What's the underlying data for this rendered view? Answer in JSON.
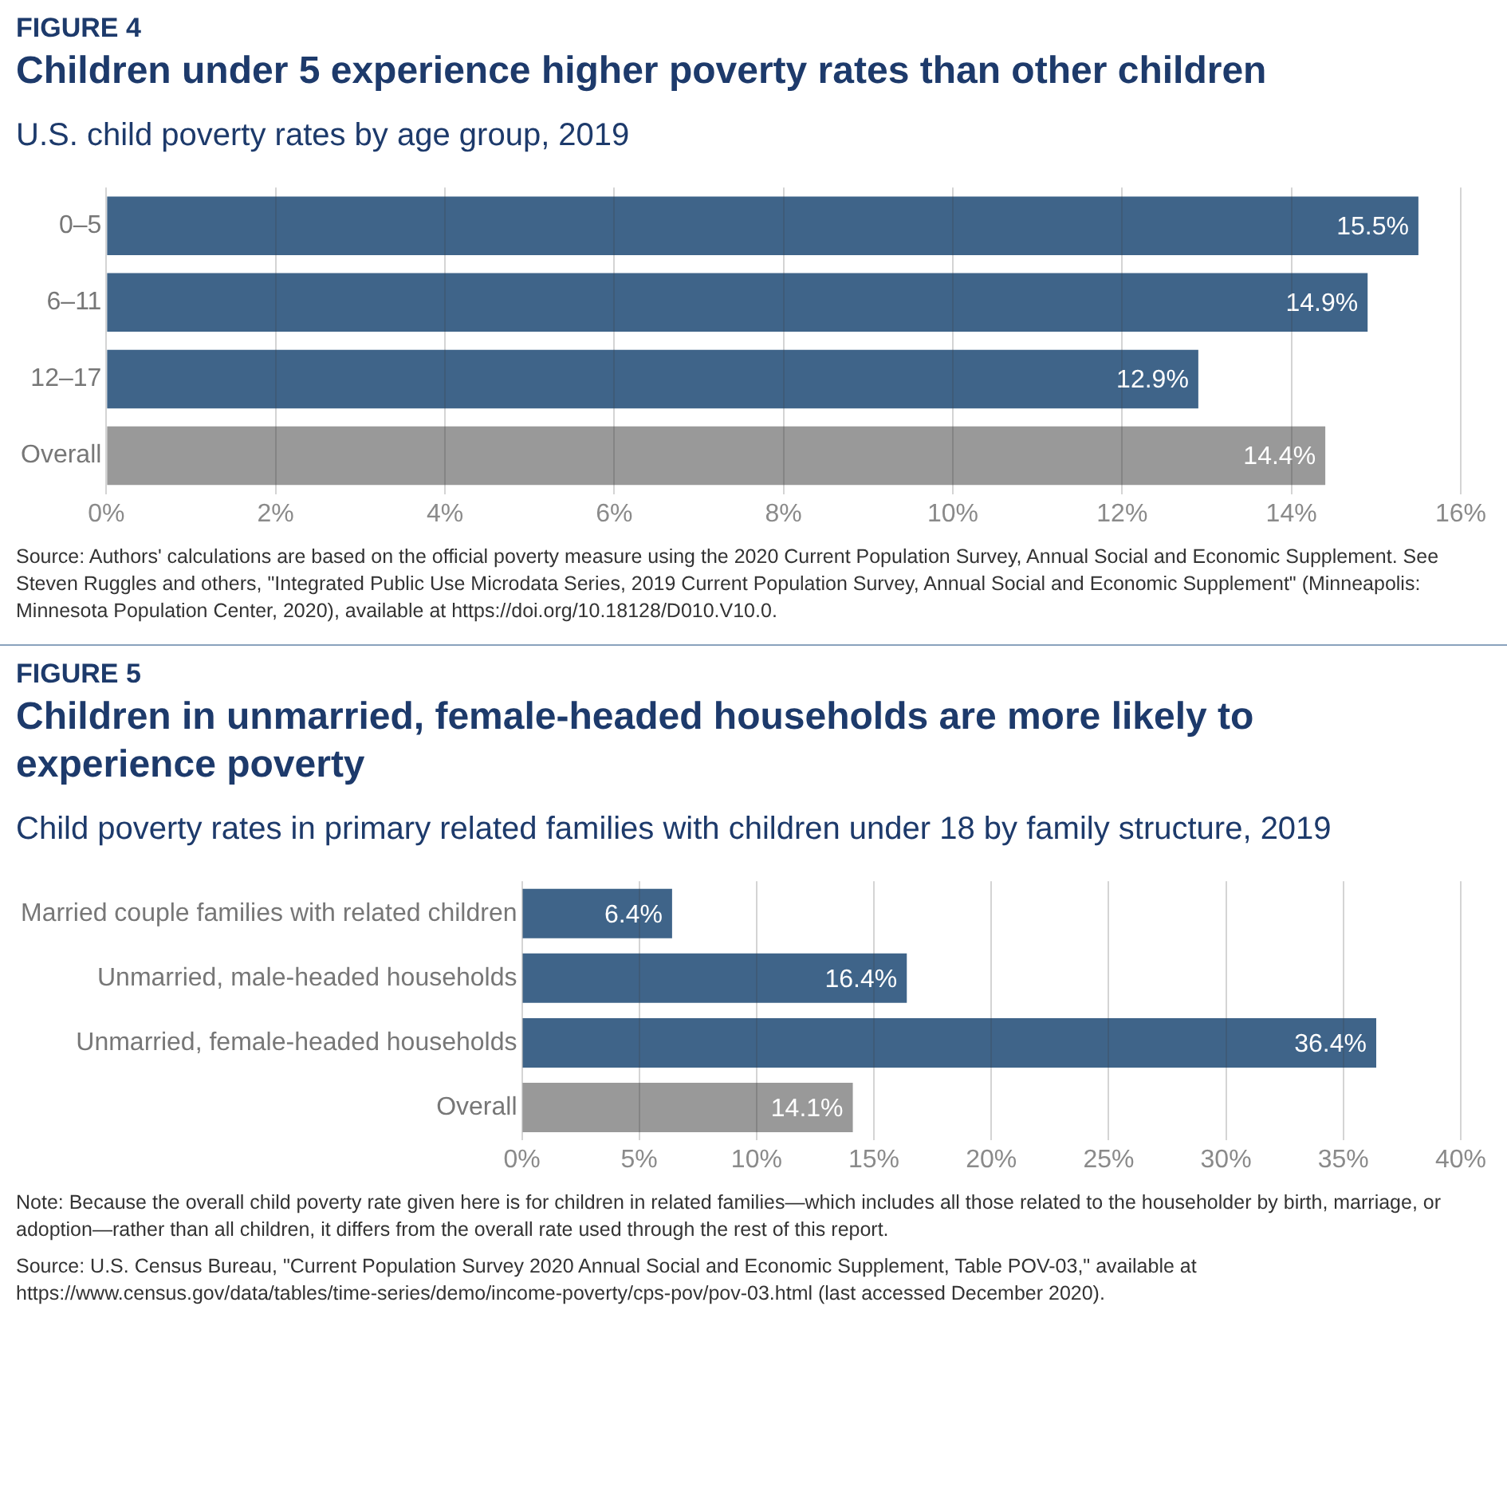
{
  "chart_data": [
    {
      "type": "bar",
      "orientation": "horizontal",
      "title": "Children under 5 experience higher poverty rates than other children",
      "subtitle": "U.S. child poverty rates by age group, 2019",
      "categories": [
        "0–5",
        "6–11",
        "12–17",
        "Overall"
      ],
      "values": [
        15.5,
        14.9,
        12.9,
        14.4
      ],
      "colors": [
        "#3f6489",
        "#3f6489",
        "#3f6489",
        "#999999"
      ],
      "value_labels": [
        "15.5%",
        "14.9%",
        "12.9%",
        "14.4%"
      ],
      "xlim": [
        0,
        16
      ],
      "xticks": [
        {
          "value": 0,
          "label": "0%"
        },
        {
          "value": 2,
          "label": "2%"
        },
        {
          "value": 4,
          "label": "4%"
        },
        {
          "value": 6,
          "label": "6%"
        },
        {
          "value": 8,
          "label": "8%"
        },
        {
          "value": 10,
          "label": "10%"
        },
        {
          "value": 12,
          "label": "12%"
        },
        {
          "value": 14,
          "label": "14%"
        },
        {
          "value": 16,
          "label": "16%"
        }
      ],
      "grid": "x",
      "legend": false,
      "annotations": [
        "FIGURE 4",
        "Source: Authors' calculations are based on the official poverty measure using the 2020 Current Population Survey, Annual Social and Economic Supplement. See Steven Ruggles and others, \"Integrated Public Use Microdata Series, 2019 Current Population Survey, Annual Social and Economic Supplement\" (Minneapolis: Minnesota Population Center, 2020), available at https://doi.org/10.18128/D010.V10.0."
      ]
    },
    {
      "type": "bar",
      "orientation": "horizontal",
      "title": "Children in unmarried, female-headed households are more likely to experience poverty",
      "subtitle": "Child poverty rates in primary related families with children under 18 by family structure, 2019",
      "categories": [
        "Married couple families with related children",
        "Unmarried, male-headed households",
        "Unmarried, female-headed households",
        "Overall"
      ],
      "values": [
        6.4,
        16.4,
        36.4,
        14.1
      ],
      "colors": [
        "#3f6489",
        "#3f6489",
        "#3f6489",
        "#999999"
      ],
      "value_labels": [
        "6.4%",
        "16.4%",
        "36.4%",
        "14.1%"
      ],
      "xlim": [
        0,
        40
      ],
      "xticks": [
        {
          "value": 0,
          "label": "0%"
        },
        {
          "value": 5,
          "label": "5%"
        },
        {
          "value": 10,
          "label": "10%"
        },
        {
          "value": 15,
          "label": "15%"
        },
        {
          "value": 20,
          "label": "20%"
        },
        {
          "value": 25,
          "label": "25%"
        },
        {
          "value": 30,
          "label": "30%"
        },
        {
          "value": 35,
          "label": "35%"
        },
        {
          "value": 40,
          "label": "40%"
        }
      ],
      "grid": "x",
      "legend": false,
      "annotations": [
        "FIGURE 5",
        "Note: Because the overall child poverty rate given here is for children in related families—which includes all those related to the householder by birth, marriage, or adoption—rather than all children, it differs from the overall rate used through the rest of this report.",
        "Source: U.S. Census Bureau, \"Current Population Survey 2020 Annual Social and Economic Supplement, Table POV-03,\" available at https://www.census.gov/data/tables/time-series/demo/income-poverty/cps-pov/pov-03.html (last accessed December 2020)."
      ]
    }
  ]
}
